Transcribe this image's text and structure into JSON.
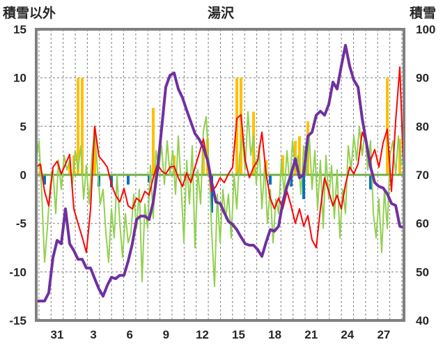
{
  "chart_data": {
    "type": "line",
    "title": "湯沢",
    "ylabel": "積雪以外",
    "y2label": "積雪",
    "ylim": [
      -15,
      15
    ],
    "y2lim": [
      40,
      100
    ],
    "yticks": [
      15,
      10,
      5,
      0,
      -5,
      -10,
      -15
    ],
    "y2ticks": [
      100,
      90,
      80,
      70,
      60,
      50,
      40
    ],
    "x_tick_labels": [
      "31",
      "3",
      "6",
      "9",
      "12",
      "15",
      "18",
      "21",
      "24",
      "27"
    ],
    "grid": true,
    "legend": "none",
    "zero_line_color": "#70AD47",
    "series": [
      {
        "type": "bar",
        "axis": "left",
        "color": "#FFC000",
        "values": [
          0,
          1.0,
          0,
          0,
          0,
          0,
          0,
          0,
          1.2,
          2.0,
          10.0,
          10.0,
          0,
          0,
          4.7,
          0,
          0,
          0,
          0,
          0,
          0,
          0,
          0,
          0,
          0,
          0,
          0,
          0,
          6.9,
          0,
          0,
          0,
          0,
          2.0,
          0,
          0,
          0,
          0,
          0,
          0,
          3.0,
          3.7,
          0,
          0,
          0,
          0,
          0,
          0,
          10.0,
          10.0,
          0,
          0,
          6.5,
          0,
          0,
          1.5,
          0,
          0,
          0,
          2.0,
          0,
          0,
          3.5,
          4.0,
          0,
          5.5,
          0,
          0,
          0,
          0,
          0,
          0,
          0,
          0,
          0,
          0,
          0,
          0,
          0,
          0,
          0,
          0,
          0,
          0,
          10.0,
          0,
          0,
          3.7,
          0
        ]
      },
      {
        "type": "bar",
        "axis": "left",
        "color": "#0070C0",
        "values": [
          0,
          0,
          -1.0,
          0,
          0,
          0,
          0,
          0,
          0,
          0,
          0,
          0,
          0,
          0,
          0,
          -1.2,
          0,
          0,
          -1.3,
          0,
          0,
          0,
          -1.0,
          0,
          0,
          0,
          0,
          -0.8,
          0,
          0,
          0,
          0,
          0,
          0,
          0,
          0,
          0,
          0,
          0,
          0,
          0,
          0,
          -3.9,
          0,
          0,
          0,
          0,
          0,
          0,
          0,
          0,
          0,
          0,
          0,
          0,
          0,
          -1.0,
          0,
          0,
          0,
          0,
          -1.2,
          0,
          0,
          -2.5,
          0,
          0,
          0,
          0,
          0,
          0,
          0,
          0,
          0,
          0,
          0,
          0,
          0,
          0,
          0,
          -1.5,
          0,
          0,
          0,
          0,
          0,
          0,
          0,
          0
        ]
      },
      {
        "type": "line",
        "axis": "left",
        "color": "#92D050",
        "values": [
          1.5,
          3.5,
          -2.0,
          -9.0,
          -5.5,
          -1.0,
          0.5,
          -4.0,
          1.5,
          -1.5,
          2.0,
          0.5,
          1.5,
          -1.0,
          2.5,
          0.5,
          3.0,
          -2.5,
          1.0,
          -3.0,
          2.0,
          4.5,
          0.5,
          -3.0,
          -1.5,
          -6.0,
          -9.0,
          -3.5,
          -6.5,
          0.0,
          -5.0,
          -8.5,
          -4.0,
          -7.0,
          -6.0,
          -2.0,
          -5.5,
          -1.5,
          -11.0,
          -3.0,
          -5.5,
          1.0,
          -4.5,
          2.5,
          0.5,
          3.0,
          -1.0,
          3.5,
          0.0,
          2.5,
          -2.0,
          4.0,
          -1.0,
          -7.0,
          1.5,
          -3.0,
          3.0,
          -7.5,
          0.5,
          -3.0,
          4.5,
          6.0,
          1.0,
          -6.0,
          -11.5,
          -2.0,
          -7.0,
          -1.5,
          -4.5,
          -2.0,
          -6.5,
          0.0,
          -3.5,
          2.0,
          4.0,
          0.5,
          6.5,
          2.0,
          4.0,
          -1.0,
          3.0,
          -3.5,
          1.0,
          -5.0,
          -1.5,
          -7.0,
          -2.5,
          -4.0,
          1.5,
          -2.0,
          2.5,
          -1.0,
          3.5,
          0.5,
          2.0,
          -2.0,
          3.0,
          0.0,
          4.0,
          -1.5,
          2.5,
          -3.5,
          1.5,
          -5.5,
          2.0,
          -2.5,
          1.0,
          -4.5,
          0.5,
          -6.5,
          -1.5,
          -4.0,
          3.0,
          0.5,
          4.0,
          1.5,
          5.0,
          2.0,
          4.5,
          0.5,
          3.5,
          -4.0,
          -6.5,
          -2.5,
          -8.0,
          -1.5,
          -5.5,
          2.0,
          3.5,
          0.0,
          4.0,
          1.0,
          1.5
        ]
      },
      {
        "type": "line",
        "axis": "left",
        "color": "#FF0000",
        "values": [
          0.8,
          1.1,
          -1.7,
          -3.2,
          0.8,
          1.4,
          0.1,
          1.1,
          2.1,
          -3.5,
          -5.0,
          -6.4,
          -8.0,
          -3.5,
          5.0,
          1.9,
          1.4,
          0.8,
          -1.0,
          -2.1,
          -2.8,
          -1.4,
          -3.2,
          -3.5,
          -2.4,
          -2.8,
          -1.7,
          -2.1,
          -0.3,
          1.1,
          0.4,
          0.1,
          0.8,
          0.9,
          -0.3,
          -1.2,
          0.2,
          -0.8,
          0.8,
          2.2,
          3.7,
          1.4,
          -1.7,
          -1.2,
          -0.3,
          -0.8,
          0.1,
          0.8,
          5.8,
          6.2,
          1.5,
          -0.3,
          0.8,
          1.5,
          4.4,
          0.1,
          -2.4,
          -3.5,
          -2.4,
          -3.5,
          -1.7,
          -3.2,
          -5.0,
          -3.5,
          -5.3,
          -4.2,
          -6.7,
          -7.5,
          -3.5,
          -0.3,
          -1.7,
          -3.2,
          -2.1,
          -3.5,
          -1.0,
          0.8,
          0.1,
          1.1,
          4.4,
          3.3,
          1.5,
          2.6,
          0.8,
          3.3,
          4.7,
          -1.7,
          5.5,
          11.1,
          -1.0
        ]
      },
      {
        "type": "line",
        "axis": "right",
        "color": "#7030A0",
        "values": [
          44.0,
          44.0,
          44.0,
          45.7,
          52.9,
          56.5,
          55.8,
          63.0,
          55.8,
          54.4,
          52.6,
          52.6,
          50.8,
          50.8,
          48.6,
          46.5,
          45.0,
          47.2,
          48.9,
          48.6,
          49.3,
          49.3,
          52.2,
          55.8,
          60.8,
          61.5,
          61.5,
          60.8,
          64.4,
          70.9,
          79.5,
          88.1,
          90.5,
          91.0,
          87.7,
          85.9,
          83.3,
          80.9,
          78.5,
          77.3,
          75.6,
          73.0,
          68.4,
          64.4,
          64.1,
          62.2,
          60.4,
          59.8,
          58.7,
          57.2,
          55.8,
          55.5,
          55.5,
          54.6,
          53.2,
          56.1,
          58.7,
          58.4,
          59.4,
          64.4,
          67.6,
          70.1,
          73.3,
          69.4,
          70.1,
          78.0,
          78.8,
          82.3,
          83.1,
          82.3,
          84.5,
          89.1,
          87.7,
          92.4,
          96.7,
          92.4,
          89.5,
          88.1,
          81.6,
          76.6,
          71.6,
          68.4,
          67.6,
          67.3,
          66.1,
          64.1,
          63.7,
          59.4,
          59.1
        ]
      }
    ]
  }
}
